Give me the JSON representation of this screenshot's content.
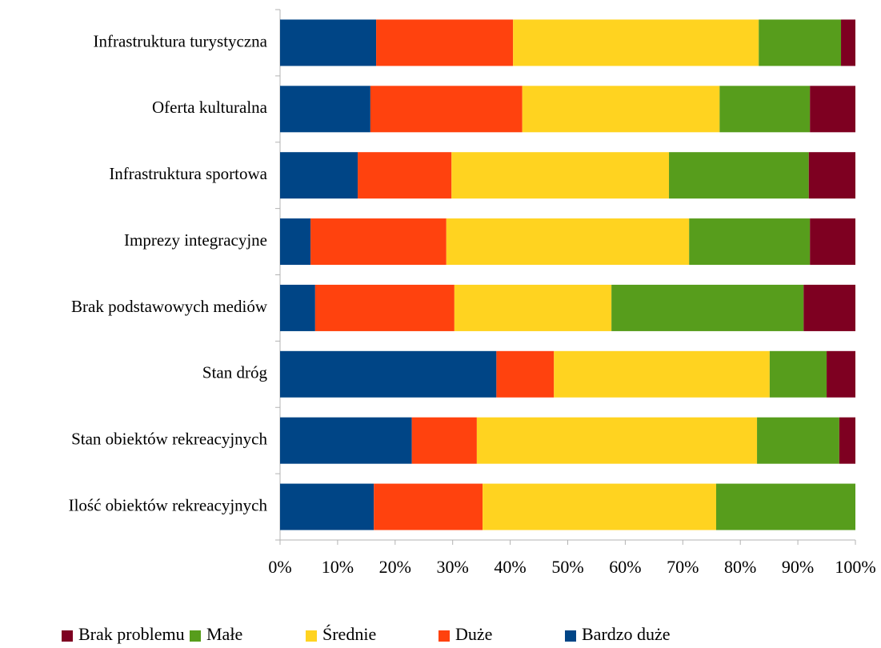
{
  "chart_data": {
    "type": "stacked_barh",
    "categories": [
      "Infrastruktura turystyczna",
      "Oferta kulturalna",
      "Infrastruktura sportowa",
      "Imprezy integracyjne",
      "Brak podstawowych mediów",
      "Stan dróg",
      "Stan obiektów rekreacyjnych",
      "Ilość obiektów rekreacyjnych"
    ],
    "series": [
      {
        "name": "Brak problemu",
        "color": "#7e0021",
        "values": [
          2.5,
          7.9,
          8.1,
          7.9,
          9.0,
          5.0,
          2.8,
          0
        ]
      },
      {
        "name": "Małe",
        "color": "#579d1c",
        "values": [
          14.3,
          15.7,
          24.3,
          21.0,
          33.4,
          9.9,
          14.3,
          24.2
        ]
      },
      {
        "name": "Średnie",
        "color": "#ffd320",
        "values": [
          42.7,
          34.3,
          37.8,
          42.2,
          27.3,
          37.5,
          48.7,
          40.6
        ]
      },
      {
        "name": "Duże",
        "color": "#ff420e",
        "values": [
          23.8,
          26.4,
          16.3,
          23.6,
          24.2,
          10.0,
          11.3,
          18.9
        ]
      },
      {
        "name": "Bardzo duże",
        "color": "#004586",
        "values": [
          16.7,
          15.7,
          13.5,
          5.3,
          6.1,
          37.6,
          22.9,
          16.3
        ]
      }
    ],
    "xlim": [
      0,
      100
    ],
    "xticks": [
      {
        "value": 0,
        "label": "0%"
      },
      {
        "value": 10,
        "label": "10%"
      },
      {
        "value": 20,
        "label": "20%"
      },
      {
        "value": 30,
        "label": "30%"
      },
      {
        "value": 40,
        "label": "40%"
      },
      {
        "value": 50,
        "label": "50%"
      },
      {
        "value": 60,
        "label": "60%"
      },
      {
        "value": 70,
        "label": "70%"
      },
      {
        "value": 80,
        "label": "80%"
      },
      {
        "value": 90,
        "label": "90%"
      },
      {
        "value": 100,
        "label": "100%"
      }
    ],
    "legend": "bottom"
  }
}
